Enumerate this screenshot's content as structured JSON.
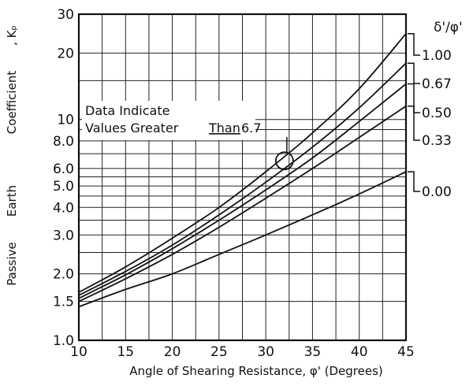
{
  "chart_data": {
    "type": "line",
    "xlabel": "Angle of Shearing Resistance, φ' (Degrees)",
    "ylabel_parts": [
      "Passive",
      "Earth",
      "Coefficient",
      ", Kₚ"
    ],
    "x_scale": "linear",
    "y_scale": "log",
    "xlim": [
      10,
      45
    ],
    "ylim": [
      1.0,
      30
    ],
    "grid": true,
    "x_ticks": [
      10,
      15,
      20,
      25,
      30,
      35,
      40,
      45
    ],
    "x_tick_labels": [
      "10",
      "15",
      "20",
      "25",
      "30",
      "35",
      "40",
      "45"
    ],
    "y_ticks": [
      1.0,
      1.5,
      2.0,
      3.0,
      4.0,
      5.0,
      6.0,
      8.0,
      10,
      20,
      30
    ],
    "y_tick_labels": [
      "1.0",
      "1.5",
      "2.0",
      "3.0",
      "4.0",
      "5.0",
      "6.0",
      "8.0",
      "10",
      "20",
      "30"
    ],
    "legend_title": "δ'/φ'",
    "legend_placement": "right",
    "series": [
      {
        "name": "1.00",
        "x": [
          10,
          15,
          20,
          25,
          30,
          35,
          40,
          45
        ],
        "y": [
          1.65,
          2.15,
          2.9,
          4.0,
          5.8,
          8.7,
          13.8,
          24.5
        ]
      },
      {
        "name": "0.67",
        "x": [
          10,
          15,
          20,
          25,
          30,
          35,
          40,
          45
        ],
        "y": [
          1.6,
          2.05,
          2.7,
          3.7,
          5.2,
          7.5,
          11.3,
          18.0
        ]
      },
      {
        "name": "0.50",
        "x": [
          10,
          15,
          20,
          25,
          30,
          35,
          40,
          45
        ],
        "y": [
          1.55,
          1.98,
          2.6,
          3.5,
          4.8,
          6.7,
          9.8,
          14.5
        ]
      },
      {
        "name": "0.33",
        "x": [
          10,
          15,
          20,
          25,
          30,
          35,
          40,
          45
        ],
        "y": [
          1.5,
          1.9,
          2.45,
          3.25,
          4.4,
          6.0,
          8.3,
          11.5
        ]
      },
      {
        "name": "0.00",
        "x": [
          10,
          15,
          20,
          25,
          30,
          35,
          40,
          45
        ],
        "y": [
          1.42,
          1.7,
          2.0,
          2.45,
          3.0,
          3.7,
          4.6,
          5.8
        ]
      }
    ],
    "annotations": {
      "line1": "Data   Indicate",
      "line2_prefix": "Values Greater",
      "line2_underlined": "Than",
      "line2_value": "6.7",
      "circle_at": {
        "x": 32,
        "y": 6.5
      }
    }
  }
}
